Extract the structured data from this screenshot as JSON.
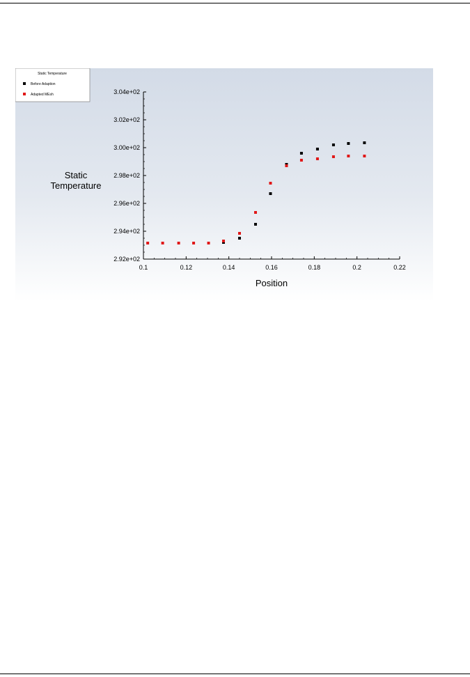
{
  "chart_data": {
    "type": "scatter",
    "title": "",
    "xlabel": "Position",
    "ylabel_lines": [
      "Static",
      "Temperature"
    ],
    "xlim": [
      0.1,
      0.22
    ],
    "ylim": [
      292,
      304
    ],
    "x_ticks": [
      "0.1",
      "0.12",
      "0.14",
      "0.16",
      "0.18",
      "0.2",
      "0.22"
    ],
    "x_tick_values": [
      0.1,
      0.12,
      0.14,
      0.16,
      0.18,
      0.2,
      0.22
    ],
    "y_ticks": [
      "2.92e+02",
      "2.94e+02",
      "2.96e+02",
      "2.98e+02",
      "3.00e+02",
      "3.02e+02",
      "3.04e+02"
    ],
    "y_tick_values": [
      292,
      294,
      296,
      298,
      300,
      302,
      304
    ],
    "grid": false,
    "legend": {
      "title": "Static Temperature",
      "placement": "top-left"
    },
    "series": [
      {
        "name": "Before Adaption",
        "color": "#000000",
        "x": [
          0.1375,
          0.145,
          0.1525,
          0.1595,
          0.167,
          0.174,
          0.1815,
          0.189,
          0.196,
          0.2035
        ],
        "y": [
          293.2,
          293.5,
          294.5,
          296.7,
          298.8,
          299.6,
          299.9,
          300.2,
          300.3,
          300.35
        ]
      },
      {
        "name": "Adapted MEsh",
        "color": "#e01818",
        "x": [
          0.102,
          0.109,
          0.1165,
          0.1235,
          0.1305,
          0.1375,
          0.145,
          0.1525,
          0.1595,
          0.167,
          0.174,
          0.1815,
          0.189,
          0.196,
          0.2035
        ],
        "y": [
          293.15,
          293.15,
          293.15,
          293.15,
          293.15,
          293.3,
          293.85,
          295.35,
          297.45,
          298.7,
          299.1,
          299.2,
          299.35,
          299.4,
          299.4
        ]
      }
    ]
  }
}
